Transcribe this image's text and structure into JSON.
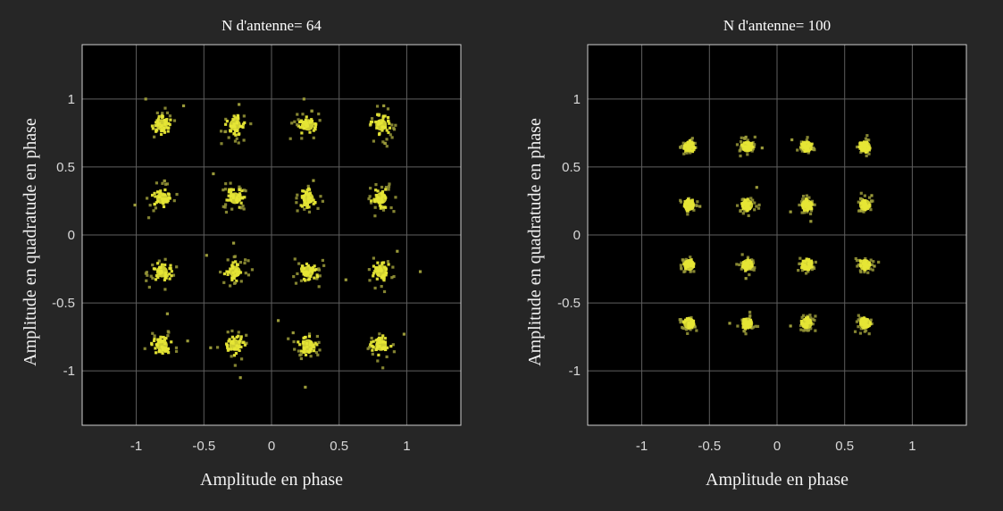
{
  "colors": {
    "figure_background": "#262626",
    "axes_background": "#000000",
    "grid": "#5f5f5f",
    "axes_box": "#cfcfcf",
    "marker": "#e6e635",
    "marker_outlier": "#9a9a3a",
    "text": "#f2f2f2"
  },
  "chart_data": [
    {
      "type": "scatter",
      "title": "N d'antenne= 64",
      "xlabel": "Amplitude en phase",
      "ylabel": "Amplitude en quadratude en phase",
      "xlim": [
        -1.4,
        1.4
      ],
      "ylim": [
        -1.4,
        1.4
      ],
      "xticks": [
        -1,
        -0.5,
        0,
        0.5,
        1
      ],
      "xtick_labels": [
        "-1",
        "-0.5",
        "0",
        "0.5",
        "1"
      ],
      "yticks": [
        -1,
        -0.5,
        0,
        0.5,
        1
      ],
      "ytick_labels": [
        "-1",
        "-0.5",
        "0",
        "0.5",
        "1"
      ],
      "grid": true,
      "cluster_centers": {
        "x": [
          -0.81,
          -0.27,
          0.27,
          0.81
        ],
        "y": [
          0.81,
          0.27,
          -0.27,
          -0.81
        ]
      },
      "spread": 0.05,
      "outliers": [
        {
          "x": -0.93,
          "y": 1.0
        },
        {
          "x": -0.65,
          "y": 0.95
        },
        {
          "x": -0.24,
          "y": 0.96
        },
        {
          "x": 0.24,
          "y": 1.0
        },
        {
          "x": 0.83,
          "y": 0.95
        },
        {
          "x": -1.01,
          "y": 0.22
        },
        {
          "x": -0.43,
          "y": 0.45
        },
        {
          "x": 0.31,
          "y": 0.4
        },
        {
          "x": -0.28,
          "y": -0.06
        },
        {
          "x": -0.48,
          "y": -0.15
        },
        {
          "x": 0.93,
          "y": -0.12
        },
        {
          "x": 1.1,
          "y": -0.27
        },
        {
          "x": 0.55,
          "y": -0.33
        },
        {
          "x": -0.77,
          "y": -0.58
        },
        {
          "x": -0.62,
          "y": -0.78
        },
        {
          "x": -0.23,
          "y": -1.05
        },
        {
          "x": 0.25,
          "y": -1.12
        },
        {
          "x": 0.05,
          "y": -0.63
        },
        {
          "x": 0.16,
          "y": -0.72
        },
        {
          "x": 0.98,
          "y": -0.73
        },
        {
          "x": -0.45,
          "y": -0.83
        }
      ]
    },
    {
      "type": "scatter",
      "title": "N d'antenne= 100",
      "xlabel": "Amplitude en phase",
      "ylabel": "Amplitude en quadratude en phase",
      "xlim": [
        -1.4,
        1.4
      ],
      "ylim": [
        -1.4,
        1.4
      ],
      "xticks": [
        -1,
        -0.5,
        0,
        0.5,
        1
      ],
      "xtick_labels": [
        "-1",
        "-0.5",
        "0",
        "0.5",
        "1"
      ],
      "yticks": [
        -1,
        -0.5,
        0,
        0.5,
        1
      ],
      "ytick_labels": [
        "-1",
        "-0.5",
        "0",
        "0.5",
        "1"
      ],
      "grid": true,
      "cluster_centers": {
        "x": [
          -0.65,
          -0.22,
          0.22,
          0.65
        ],
        "y": [
          0.65,
          0.22,
          -0.22,
          -0.65
        ]
      },
      "spread": 0.028,
      "outliers": [
        {
          "x": -0.11,
          "y": 0.64
        },
        {
          "x": 0.11,
          "y": 0.7
        },
        {
          "x": -0.23,
          "y": 0.72
        },
        {
          "x": -0.15,
          "y": 0.35
        },
        {
          "x": 0.25,
          "y": 0.1
        },
        {
          "x": 0.1,
          "y": 0.17
        },
        {
          "x": 0.7,
          "y": 0.29
        },
        {
          "x": -0.57,
          "y": 0.21
        },
        {
          "x": -0.35,
          "y": -0.65
        },
        {
          "x": 0.1,
          "y": -0.67
        },
        {
          "x": -0.23,
          "y": -0.32
        },
        {
          "x": 0.72,
          "y": -0.23
        }
      ]
    }
  ]
}
